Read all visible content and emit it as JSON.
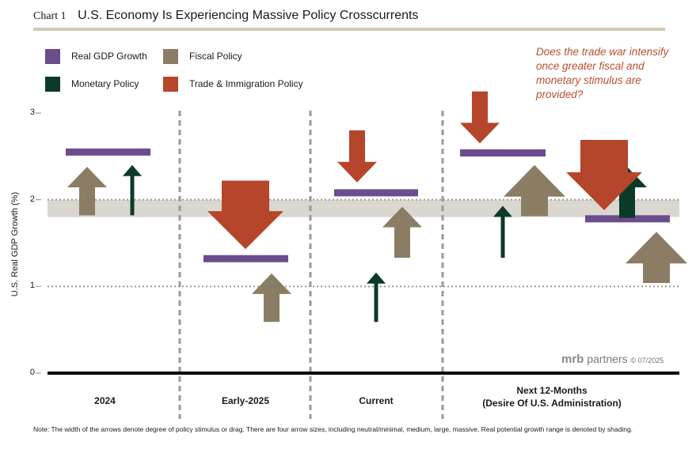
{
  "header": {
    "chart_number": "Chart 1",
    "title": "U.S. Economy Is Experiencing Massive Policy Crosscurrents"
  },
  "legend": [
    {
      "label": "Real GDP Growth",
      "color": "#6b4c8e"
    },
    {
      "label": "Fiscal Policy",
      "color": "#8a7d64"
    },
    {
      "label": "Monetary Policy",
      "color": "#0b3b28"
    },
    {
      "label": "Trade & Immigration Policy",
      "color": "#b5452b"
    }
  ],
  "annotation": "Does the trade war intensify once greater fiscal and monetary stimulus are provided?",
  "brand": {
    "name": "mrb",
    "suffix": "partners",
    "date": "© 07/2025"
  },
  "note": "Note: The width of the arrows denote degree of policy stimulus or drag. There are four arrow sizes, including  neutral/minimal, medium, large, massive. Real potential growth range is denoted by shading.",
  "chart_data": {
    "type": "other",
    "title": "U.S. Economy Is Experiencing Massive Policy Crosscurrents",
    "ylabel": "U.S. Real GDP Growth (%)",
    "ylim": [
      0,
      3
    ],
    "yticks": [
      "0",
      "1",
      "2",
      "3"
    ],
    "dotted_gridlines": [
      1,
      2
    ],
    "potential_growth_band": [
      1.8,
      2.0
    ],
    "categories": [
      "2024",
      "Early-2025",
      "Current",
      "Next 12-Months\n(Desire Of U.S. Administration)"
    ],
    "category_lines": [
      [
        "2024"
      ],
      [
        "Early-2025"
      ],
      [
        "Current"
      ],
      [
        "Next 12-Months",
        "(Desire Of U.S. Administration)"
      ]
    ],
    "gdp_growth": [
      {
        "category": "2024",
        "value": 2.55
      },
      {
        "category": "Early-2025",
        "value": 1.32
      },
      {
        "category": "Current",
        "value": 2.08
      },
      {
        "category": "Next 12-Months",
        "scenario": 1,
        "value": 2.54
      },
      {
        "category": "Next 12-Months",
        "scenario": 2,
        "value": 1.78
      }
    ],
    "arrows": [
      {
        "category": "2024",
        "policy": "Fiscal Policy",
        "direction": "up",
        "size": "medium",
        "from": 1.82,
        "to": 2.38
      },
      {
        "category": "2024",
        "policy": "Monetary Policy",
        "direction": "up",
        "size": "neutral/minimal",
        "from": 1.82,
        "to": 2.4
      },
      {
        "category": "Early-2025",
        "policy": "Trade & Immigration Policy",
        "direction": "down",
        "size": "massive",
        "from": 2.22,
        "to": 1.43
      },
      {
        "category": "Early-2025",
        "policy": "Fiscal Policy",
        "direction": "up",
        "size": "medium",
        "from": 0.59,
        "to": 1.15
      },
      {
        "category": "Early-2025",
        "policy": "Monetary Policy",
        "direction": "up",
        "size": "neutral/minimal",
        "from": 0.59,
        "to": 1.16
      },
      {
        "category": "Current",
        "policy": "Trade & Immigration Policy",
        "direction": "down",
        "size": "medium",
        "from": 2.8,
        "to": 2.2
      },
      {
        "category": "Current",
        "policy": "Fiscal Policy",
        "direction": "up",
        "size": "medium",
        "from": 1.33,
        "to": 1.92
      },
      {
        "category": "Current",
        "policy": "Monetary Policy",
        "direction": "up",
        "size": "neutral/minimal",
        "from": 1.33,
        "to": 1.93
      },
      {
        "category": "Next 12-Months",
        "scenario": 1,
        "policy": "Trade & Immigration Policy",
        "direction": "down",
        "size": "medium",
        "from": 3.25,
        "to": 2.65
      },
      {
        "category": "Next 12-Months",
        "scenario": 1,
        "policy": "Fiscal Policy",
        "direction": "up",
        "size": "large",
        "from": 1.81,
        "to": 2.4
      },
      {
        "category": "Next 12-Months",
        "scenario": 1,
        "policy": "Monetary Policy",
        "direction": "up",
        "size": "medium",
        "from": 1.79,
        "to": 2.38
      },
      {
        "category": "Next 12-Months",
        "scenario": 2,
        "policy": "Trade & Immigration Policy",
        "direction": "down",
        "size": "massive",
        "from": 2.69,
        "to": 1.88
      },
      {
        "category": "Next 12-Months",
        "scenario": 2,
        "policy": "Fiscal Policy",
        "direction": "up",
        "size": "large",
        "from": 1.04,
        "to": 1.63
      },
      {
        "category": "Next 12-Months",
        "scenario": 2,
        "policy": "Monetary Policy",
        "direction": "up",
        "size": "medium",
        "from": 1.02,
        "to": 1.62
      }
    ]
  }
}
